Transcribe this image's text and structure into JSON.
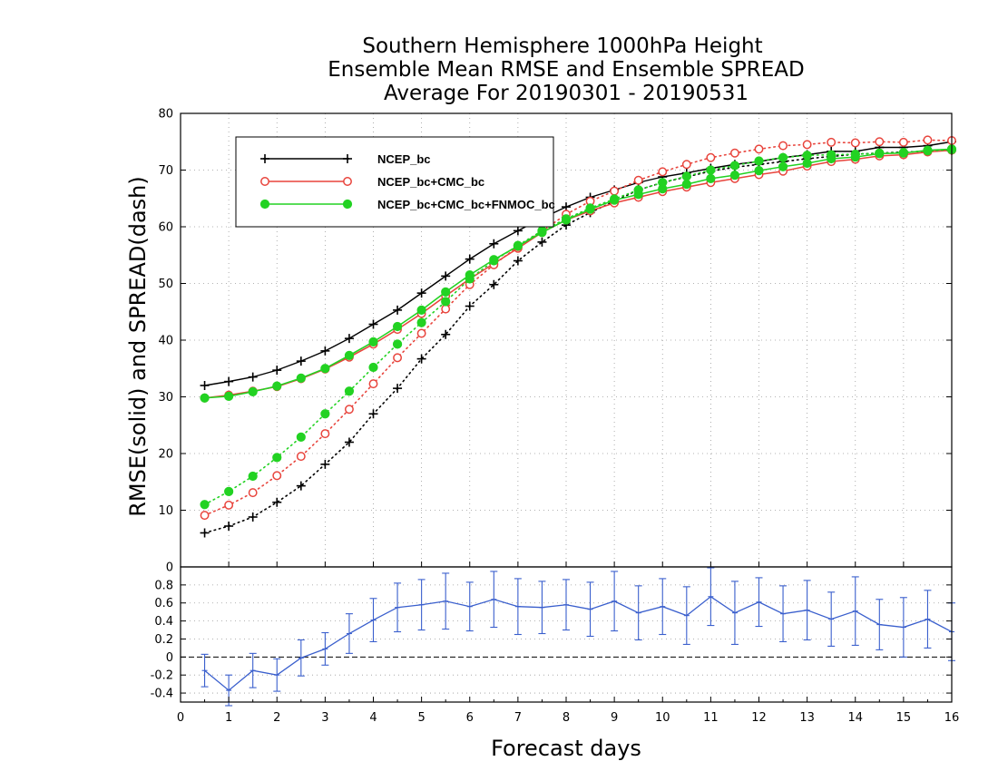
{
  "chart_data": {
    "type": "line",
    "title": [
      "Southern Hemisphere 1000hPa Height",
      "Ensemble Mean RMSE and Ensemble SPREAD",
      "Average For 20190301 - 20190531"
    ],
    "xlabel": "Forecast days",
    "ylabel": "RMSE(solid) and SPREAD(dash)",
    "xlim": [
      0,
      16
    ],
    "ylim": [
      0,
      80
    ],
    "x_ticks": [
      0,
      1,
      2,
      3,
      4,
      5,
      6,
      7,
      8,
      9,
      10,
      11,
      12,
      13,
      14,
      15,
      16
    ],
    "y_ticks": [
      10,
      20,
      30,
      40,
      50,
      60,
      70,
      80
    ],
    "grid": true,
    "legend_position": "top-left",
    "x": [
      0.5,
      1,
      1.5,
      2,
      2.5,
      3,
      3.5,
      4,
      4.5,
      5,
      5.5,
      6,
      6.5,
      7,
      7.5,
      8,
      8.5,
      9,
      9.5,
      10,
      10.5,
      11,
      11.5,
      12,
      12.5,
      13,
      13.5,
      14,
      14.5,
      15,
      15.5,
      16
    ],
    "series": [
      {
        "name": "NCEP_bc",
        "color": "#000000",
        "marker": "plus",
        "rmse": [
          32.0,
          32.7,
          33.5,
          34.7,
          36.3,
          38.1,
          40.3,
          42.8,
          45.3,
          48.3,
          51.3,
          54.3,
          57.0,
          59.3,
          61.5,
          63.5,
          65.2,
          66.5,
          67.8,
          68.8,
          69.5,
          70.3,
          71.0,
          71.5,
          72.2,
          72.7,
          73.3,
          73.3,
          74.0,
          74.0,
          74.3,
          75.0
        ],
        "spread": [
          6.0,
          7.2,
          8.8,
          11.4,
          14.3,
          18.1,
          22.0,
          27.0,
          31.5,
          36.7,
          41.0,
          46.0,
          49.8,
          54.0,
          57.3,
          60.3,
          62.5,
          64.5,
          66.5,
          67.8,
          68.8,
          69.8,
          70.5,
          71.0,
          71.5,
          72.0,
          72.4,
          72.8,
          73.0,
          73.2,
          73.3,
          73.5
        ]
      },
      {
        "name": "NCEP_bc+CMC_bc",
        "color": "#e8443c",
        "marker": "open-circle",
        "rmse": [
          29.8,
          30.3,
          31.0,
          31.8,
          33.2,
          34.9,
          37.0,
          39.3,
          41.9,
          44.7,
          47.8,
          50.8,
          53.5,
          56.2,
          59.0,
          61.2,
          62.8,
          64.2,
          65.2,
          66.2,
          67.0,
          67.8,
          68.5,
          69.2,
          69.8,
          70.7,
          71.5,
          71.9,
          72.5,
          72.7,
          73.2,
          73.5
        ],
        "spread": [
          9.1,
          10.9,
          13.1,
          16.1,
          19.5,
          23.5,
          27.8,
          32.3,
          36.9,
          41.2,
          45.5,
          49.8,
          53.3,
          56.5,
          59.2,
          62.2,
          64.5,
          66.3,
          68.2,
          69.7,
          71.0,
          72.2,
          73.0,
          73.7,
          74.3,
          74.5,
          74.9,
          74.8,
          75.0,
          74.9,
          75.3,
          75.2
        ]
      },
      {
        "name": "NCEP_bc+CMC_bc+FNMOC_bc",
        "color": "#22d222",
        "marker": "filled-circle",
        "rmse": [
          29.8,
          30.1,
          30.9,
          31.9,
          33.3,
          35.0,
          37.3,
          39.7,
          42.4,
          45.3,
          48.5,
          51.5,
          54.2,
          56.6,
          59.0,
          61.2,
          63.1,
          64.7,
          65.7,
          66.7,
          67.5,
          68.5,
          69.1,
          69.9,
          70.6,
          71.2,
          72.0,
          72.3,
          72.9,
          73.0,
          73.5,
          73.7
        ],
        "spread": [
          11.0,
          13.3,
          16.0,
          19.3,
          22.9,
          27.0,
          31.0,
          35.2,
          39.3,
          43.1,
          46.8,
          50.8,
          54.0,
          56.7,
          59.3,
          61.4,
          63.3,
          64.9,
          66.5,
          67.8,
          68.9,
          70.0,
          70.8,
          71.6,
          72.2,
          72.6,
          72.7,
          72.8,
          73.0,
          73.1,
          73.4,
          73.6
        ]
      }
    ],
    "difference_panel": {
      "color": "#3a5fcd",
      "ylim": [
        -0.5,
        1.0
      ],
      "y_ticks": [
        -0.4,
        -0.2,
        0,
        0.2,
        0.4,
        0.6,
        0.8
      ],
      "y_tick_labels": [
        "-0.4",
        "-0.2",
        "0",
        "0.2",
        "0.4",
        "0.6",
        "0.8"
      ],
      "zero_line": true,
      "values": [
        -0.15,
        -0.37,
        -0.15,
        -0.2,
        -0.01,
        0.09,
        0.26,
        0.41,
        0.55,
        0.58,
        0.62,
        0.56,
        0.64,
        0.56,
        0.55,
        0.58,
        0.53,
        0.62,
        0.49,
        0.56,
        0.46,
        0.67,
        0.49,
        0.61,
        0.48,
        0.52,
        0.42,
        0.51,
        0.36,
        0.33,
        0.42,
        0.28
      ],
      "error_bar_halfwidth": [
        0.18,
        0.17,
        0.19,
        0.18,
        0.2,
        0.18,
        0.22,
        0.24,
        0.27,
        0.28,
        0.31,
        0.27,
        0.31,
        0.31,
        0.29,
        0.28,
        0.3,
        0.33,
        0.3,
        0.31,
        0.32,
        0.32,
        0.35,
        0.27,
        0.31,
        0.33,
        0.3,
        0.38,
        0.28,
        0.33,
        0.32,
        0.32
      ]
    }
  }
}
